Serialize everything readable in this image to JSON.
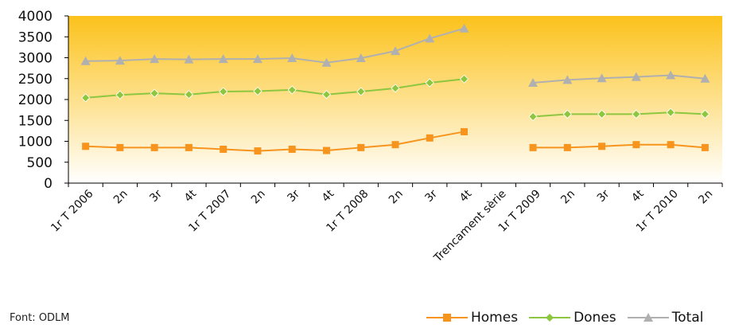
{
  "source_label": "Font: ODLM",
  "chart_data": {
    "type": "line",
    "title": "",
    "xlabel": "",
    "ylabel": "",
    "ylim": [
      0,
      4000
    ],
    "ytick_labels": [
      "0",
      "500",
      "1000",
      "1500",
      "2000",
      "2500",
      "3000",
      "3500",
      "4000"
    ],
    "categories": [
      "1r T 2006",
      "2n",
      "3r",
      "4t",
      "1r T 2007",
      "2n",
      "3r",
      "4t",
      "1r T 2008",
      "2n",
      "3r",
      "4t",
      "Trencament sèrie",
      "1r T 2009",
      "2n",
      "3r",
      "4t",
      "1r T 2010",
      "2n"
    ],
    "series": [
      {
        "name": "Homes",
        "color": "#f7941d",
        "marker": "square",
        "values": [
          880,
          850,
          850,
          850,
          810,
          770,
          810,
          780,
          850,
          920,
          1080,
          1230,
          null,
          850,
          850,
          880,
          920,
          920,
          850
        ]
      },
      {
        "name": "Dones",
        "color": "#8dc63f",
        "marker": "diamond",
        "values": [
          2040,
          2110,
          2150,
          2120,
          2190,
          2200,
          2230,
          2120,
          2190,
          2270,
          2400,
          2490,
          null,
          1590,
          1650,
          1650,
          1650,
          1690,
          1650
        ]
      },
      {
        "name": "Total",
        "color": "#b0b0b0",
        "marker": "triangle",
        "values": [
          2920,
          2930,
          2970,
          2960,
          2970,
          2970,
          2990,
          2880,
          2990,
          3160,
          3460,
          3700,
          null,
          2400,
          2470,
          2510,
          2540,
          2580,
          2500
        ]
      }
    ],
    "background_gradient": [
      "#fcc21b",
      "#ffffff"
    ],
    "grid": false,
    "legend_position": "bottom-right"
  }
}
